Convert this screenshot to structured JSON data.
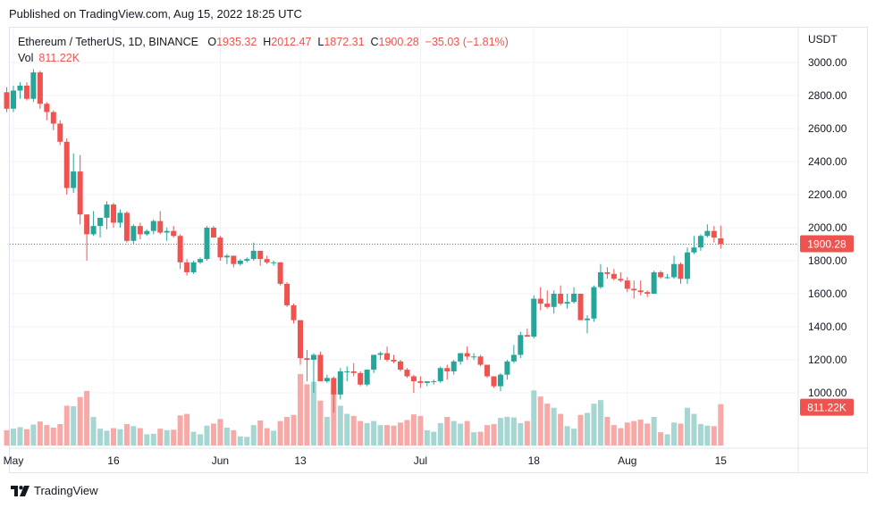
{
  "header": {
    "published": "Published on TradingView.com, Aug 15, 2022 18:25 UTC"
  },
  "legend": {
    "symbol": "Ethereum / TetherUS, 1D, BINANCE",
    "o_label": "O",
    "o_value": "1935.32",
    "h_label": "H",
    "h_value": "2012.47",
    "l_label": "L",
    "l_value": "1872.31",
    "c_label": "C",
    "c_value": "1900.28",
    "change": "−35.03 (−1.81%)",
    "vol_label": "Vol",
    "vol_value": "811.22K"
  },
  "price_axis": {
    "unit": "USDT",
    "ticks": [
      "3000.00",
      "2800.00",
      "2600.00",
      "2400.00",
      "2200.00",
      "2000.00",
      "1800.00",
      "1600.00",
      "1400.00",
      "1200.00",
      "1000.00"
    ],
    "last_price_label": "1900.28",
    "last_volume_label": "811.22K"
  },
  "time_axis": {
    "labels": [
      "May",
      "16",
      "Jun",
      "13",
      "Jul",
      "18",
      "Aug",
      "15"
    ]
  },
  "footer": {
    "brand": "TradingView"
  },
  "colors": {
    "up": "#26a69a",
    "down": "#ef5350",
    "up_volume": "#a5d6d2",
    "down_volume": "#f6a9a6",
    "grid": "#f0f3fa",
    "text": "#131722"
  },
  "chart_data": {
    "type": "candlestick",
    "symbol": "ETH/USDT",
    "interval": "1D",
    "y_unit": "USDT",
    "ylim": [
      850,
      3100
    ],
    "x_range": [
      "2022-05-01",
      "2022-08-15"
    ],
    "date_ticks": [
      "2022-05-01",
      "2022-05-16",
      "2022-06-01",
      "2022-06-13",
      "2022-07-01",
      "2022-07-18",
      "2022-08-01",
      "2022-08-15"
    ],
    "date_tick_labels": [
      "May",
      "16",
      "Jun",
      "13",
      "Jul",
      "18",
      "Aug",
      "15"
    ],
    "last_close": 1900.28,
    "last_volume": "811.22K",
    "volume_unit": "K ETH",
    "candles": [
      {
        "date": "2022-04-30",
        "o": 2820,
        "h": 2850,
        "l": 2700,
        "c": 2720,
        "v": 300
      },
      {
        "date": "2022-05-01",
        "o": 2720,
        "h": 2860,
        "l": 2700,
        "c": 2830,
        "v": 330
      },
      {
        "date": "2022-05-02",
        "o": 2830,
        "h": 2880,
        "l": 2780,
        "c": 2860,
        "v": 360
      },
      {
        "date": "2022-05-03",
        "o": 2860,
        "h": 2880,
        "l": 2770,
        "c": 2780,
        "v": 320
      },
      {
        "date": "2022-05-04",
        "o": 2780,
        "h": 2960,
        "l": 2760,
        "c": 2940,
        "v": 410
      },
      {
        "date": "2022-05-05",
        "o": 2940,
        "h": 2950,
        "l": 2720,
        "c": 2750,
        "v": 470
      },
      {
        "date": "2022-05-06",
        "o": 2750,
        "h": 2760,
        "l": 2650,
        "c": 2700,
        "v": 400
      },
      {
        "date": "2022-05-07",
        "o": 2700,
        "h": 2710,
        "l": 2590,
        "c": 2630,
        "v": 350
      },
      {
        "date": "2022-05-08",
        "o": 2630,
        "h": 2650,
        "l": 2500,
        "c": 2520,
        "v": 420
      },
      {
        "date": "2022-05-09",
        "o": 2520,
        "h": 2540,
        "l": 2200,
        "c": 2240,
        "v": 780
      },
      {
        "date": "2022-05-10",
        "o": 2240,
        "h": 2450,
        "l": 2210,
        "c": 2340,
        "v": 770
      },
      {
        "date": "2022-05-11",
        "o": 2340,
        "h": 2440,
        "l": 2020,
        "c": 2080,
        "v": 950
      },
      {
        "date": "2022-05-12",
        "o": 2080,
        "h": 2080,
        "l": 1800,
        "c": 1960,
        "v": 1070
      },
      {
        "date": "2022-05-13",
        "o": 1960,
        "h": 2100,
        "l": 1950,
        "c": 2010,
        "v": 560
      },
      {
        "date": "2022-05-14",
        "o": 2010,
        "h": 2050,
        "l": 1940,
        "c": 2060,
        "v": 330
      },
      {
        "date": "2022-05-15",
        "o": 2060,
        "h": 2160,
        "l": 1990,
        "c": 2140,
        "v": 290
      },
      {
        "date": "2022-05-16",
        "o": 2140,
        "h": 2150,
        "l": 2000,
        "c": 2030,
        "v": 340
      },
      {
        "date": "2022-05-17",
        "o": 2030,
        "h": 2110,
        "l": 2000,
        "c": 2090,
        "v": 320
      },
      {
        "date": "2022-05-18",
        "o": 2090,
        "h": 2100,
        "l": 1910,
        "c": 1920,
        "v": 420
      },
      {
        "date": "2022-05-19",
        "o": 1920,
        "h": 2020,
        "l": 1900,
        "c": 2010,
        "v": 380
      },
      {
        "date": "2022-05-20",
        "o": 2010,
        "h": 2030,
        "l": 1930,
        "c": 1960,
        "v": 340
      },
      {
        "date": "2022-05-21",
        "o": 1960,
        "h": 1990,
        "l": 1950,
        "c": 1980,
        "v": 220
      },
      {
        "date": "2022-05-22",
        "o": 1980,
        "h": 2050,
        "l": 1960,
        "c": 2040,
        "v": 230
      },
      {
        "date": "2022-05-23",
        "o": 2040,
        "h": 2100,
        "l": 1960,
        "c": 1970,
        "v": 330
      },
      {
        "date": "2022-05-24",
        "o": 1970,
        "h": 2000,
        "l": 1920,
        "c": 1980,
        "v": 300
      },
      {
        "date": "2022-05-25",
        "o": 1980,
        "h": 2010,
        "l": 1940,
        "c": 1950,
        "v": 310
      },
      {
        "date": "2022-05-26",
        "o": 1950,
        "h": 1960,
        "l": 1750,
        "c": 1790,
        "v": 590
      },
      {
        "date": "2022-05-27",
        "o": 1790,
        "h": 1810,
        "l": 1710,
        "c": 1730,
        "v": 620
      },
      {
        "date": "2022-05-28",
        "o": 1730,
        "h": 1800,
        "l": 1720,
        "c": 1790,
        "v": 270
      },
      {
        "date": "2022-05-29",
        "o": 1790,
        "h": 1820,
        "l": 1780,
        "c": 1810,
        "v": 220
      },
      {
        "date": "2022-05-30",
        "o": 1810,
        "h": 2010,
        "l": 1800,
        "c": 2000,
        "v": 390
      },
      {
        "date": "2022-05-31",
        "o": 2000,
        "h": 2010,
        "l": 1940,
        "c": 1940,
        "v": 430
      },
      {
        "date": "2022-06-01",
        "o": 1940,
        "h": 1950,
        "l": 1800,
        "c": 1820,
        "v": 520
      },
      {
        "date": "2022-06-02",
        "o": 1820,
        "h": 1840,
        "l": 1780,
        "c": 1830,
        "v": 350
      },
      {
        "date": "2022-06-03",
        "o": 1830,
        "h": 1830,
        "l": 1760,
        "c": 1780,
        "v": 300
      },
      {
        "date": "2022-06-04",
        "o": 1780,
        "h": 1810,
        "l": 1770,
        "c": 1800,
        "v": 180
      },
      {
        "date": "2022-06-05",
        "o": 1800,
        "h": 1820,
        "l": 1790,
        "c": 1810,
        "v": 170
      },
      {
        "date": "2022-06-06",
        "o": 1810,
        "h": 1910,
        "l": 1800,
        "c": 1860,
        "v": 400
      },
      {
        "date": "2022-06-07",
        "o": 1860,
        "h": 1860,
        "l": 1770,
        "c": 1810,
        "v": 490
      },
      {
        "date": "2022-06-08",
        "o": 1810,
        "h": 1830,
        "l": 1780,
        "c": 1790,
        "v": 340
      },
      {
        "date": "2022-06-09",
        "o": 1790,
        "h": 1800,
        "l": 1770,
        "c": 1790,
        "v": 290
      },
      {
        "date": "2022-06-10",
        "o": 1790,
        "h": 1790,
        "l": 1650,
        "c": 1660,
        "v": 480
      },
      {
        "date": "2022-06-11",
        "o": 1660,
        "h": 1670,
        "l": 1520,
        "c": 1530,
        "v": 560
      },
      {
        "date": "2022-06-12",
        "o": 1530,
        "h": 1540,
        "l": 1420,
        "c": 1440,
        "v": 600
      },
      {
        "date": "2022-06-13",
        "o": 1440,
        "h": 1440,
        "l": 1170,
        "c": 1210,
        "v": 1400
      },
      {
        "date": "2022-06-14",
        "o": 1210,
        "h": 1260,
        "l": 1070,
        "c": 1200,
        "v": 1200
      },
      {
        "date": "2022-06-15",
        "o": 1200,
        "h": 1240,
        "l": 1000,
        "c": 1230,
        "v": 1250
      },
      {
        "date": "2022-06-16",
        "o": 1230,
        "h": 1250,
        "l": 1070,
        "c": 1070,
        "v": 880
      },
      {
        "date": "2022-06-17",
        "o": 1070,
        "h": 1110,
        "l": 1060,
        "c": 1090,
        "v": 560
      },
      {
        "date": "2022-06-18",
        "o": 1090,
        "h": 1100,
        "l": 880,
        "c": 990,
        "v": 1100
      },
      {
        "date": "2022-06-19",
        "o": 990,
        "h": 1150,
        "l": 960,
        "c": 1130,
        "v": 780
      },
      {
        "date": "2022-06-20",
        "o": 1130,
        "h": 1160,
        "l": 1070,
        "c": 1130,
        "v": 620
      },
      {
        "date": "2022-06-21",
        "o": 1130,
        "h": 1180,
        "l": 1100,
        "c": 1120,
        "v": 580
      },
      {
        "date": "2022-06-22",
        "o": 1120,
        "h": 1130,
        "l": 1040,
        "c": 1050,
        "v": 480
      },
      {
        "date": "2022-06-23",
        "o": 1050,
        "h": 1140,
        "l": 1040,
        "c": 1140,
        "v": 440
      },
      {
        "date": "2022-06-24",
        "o": 1140,
        "h": 1230,
        "l": 1120,
        "c": 1230,
        "v": 480
      },
      {
        "date": "2022-06-25",
        "o": 1230,
        "h": 1250,
        "l": 1200,
        "c": 1240,
        "v": 400
      },
      {
        "date": "2022-06-26",
        "o": 1240,
        "h": 1280,
        "l": 1190,
        "c": 1200,
        "v": 400
      },
      {
        "date": "2022-06-27",
        "o": 1200,
        "h": 1230,
        "l": 1180,
        "c": 1190,
        "v": 390
      },
      {
        "date": "2022-06-28",
        "o": 1190,
        "h": 1200,
        "l": 1130,
        "c": 1140,
        "v": 450
      },
      {
        "date": "2022-06-29",
        "o": 1140,
        "h": 1150,
        "l": 1090,
        "c": 1100,
        "v": 500
      },
      {
        "date": "2022-06-30",
        "o": 1100,
        "h": 1110,
        "l": 1000,
        "c": 1070,
        "v": 610
      },
      {
        "date": "2022-07-01",
        "o": 1070,
        "h": 1100,
        "l": 1030,
        "c": 1060,
        "v": 580
      },
      {
        "date": "2022-07-02",
        "o": 1060,
        "h": 1070,
        "l": 1040,
        "c": 1070,
        "v": 300
      },
      {
        "date": "2022-07-03",
        "o": 1070,
        "h": 1080,
        "l": 1050,
        "c": 1070,
        "v": 270
      },
      {
        "date": "2022-07-04",
        "o": 1070,
        "h": 1160,
        "l": 1060,
        "c": 1150,
        "v": 440
      },
      {
        "date": "2022-07-05",
        "o": 1150,
        "h": 1170,
        "l": 1080,
        "c": 1130,
        "v": 560
      },
      {
        "date": "2022-07-06",
        "o": 1130,
        "h": 1200,
        "l": 1110,
        "c": 1190,
        "v": 480
      },
      {
        "date": "2022-07-07",
        "o": 1190,
        "h": 1240,
        "l": 1170,
        "c": 1240,
        "v": 430
      },
      {
        "date": "2022-07-08",
        "o": 1240,
        "h": 1280,
        "l": 1200,
        "c": 1220,
        "v": 480
      },
      {
        "date": "2022-07-09",
        "o": 1220,
        "h": 1240,
        "l": 1200,
        "c": 1220,
        "v": 260
      },
      {
        "date": "2022-07-10",
        "o": 1220,
        "h": 1230,
        "l": 1160,
        "c": 1170,
        "v": 270
      },
      {
        "date": "2022-07-11",
        "o": 1170,
        "h": 1170,
        "l": 1090,
        "c": 1100,
        "v": 400
      },
      {
        "date": "2022-07-12",
        "o": 1100,
        "h": 1100,
        "l": 1030,
        "c": 1040,
        "v": 420
      },
      {
        "date": "2022-07-13",
        "o": 1040,
        "h": 1120,
        "l": 1010,
        "c": 1110,
        "v": 540
      },
      {
        "date": "2022-07-14",
        "o": 1110,
        "h": 1200,
        "l": 1080,
        "c": 1190,
        "v": 560
      },
      {
        "date": "2022-07-15",
        "o": 1190,
        "h": 1290,
        "l": 1180,
        "c": 1230,
        "v": 550
      },
      {
        "date": "2022-07-16",
        "o": 1230,
        "h": 1370,
        "l": 1210,
        "c": 1350,
        "v": 440
      },
      {
        "date": "2022-07-17",
        "o": 1350,
        "h": 1390,
        "l": 1340,
        "c": 1340,
        "v": 480
      },
      {
        "date": "2022-07-18",
        "o": 1340,
        "h": 1590,
        "l": 1330,
        "c": 1570,
        "v": 1080
      },
      {
        "date": "2022-07-19",
        "o": 1570,
        "h": 1640,
        "l": 1500,
        "c": 1540,
        "v": 960
      },
      {
        "date": "2022-07-20",
        "o": 1540,
        "h": 1620,
        "l": 1510,
        "c": 1520,
        "v": 820
      },
      {
        "date": "2022-07-21",
        "o": 1520,
        "h": 1620,
        "l": 1480,
        "c": 1600,
        "v": 740
      },
      {
        "date": "2022-07-22",
        "o": 1600,
        "h": 1650,
        "l": 1530,
        "c": 1540,
        "v": 620
      },
      {
        "date": "2022-07-23",
        "o": 1540,
        "h": 1600,
        "l": 1510,
        "c": 1550,
        "v": 380
      },
      {
        "date": "2022-07-24",
        "o": 1550,
        "h": 1640,
        "l": 1540,
        "c": 1600,
        "v": 330
      },
      {
        "date": "2022-07-25",
        "o": 1600,
        "h": 1600,
        "l": 1440,
        "c": 1440,
        "v": 600
      },
      {
        "date": "2022-07-26",
        "o": 1440,
        "h": 1470,
        "l": 1360,
        "c": 1450,
        "v": 640
      },
      {
        "date": "2022-07-27",
        "o": 1450,
        "h": 1650,
        "l": 1430,
        "c": 1640,
        "v": 820
      },
      {
        "date": "2022-07-28",
        "o": 1640,
        "h": 1780,
        "l": 1630,
        "c": 1730,
        "v": 890
      },
      {
        "date": "2022-07-29",
        "o": 1730,
        "h": 1760,
        "l": 1690,
        "c": 1720,
        "v": 560
      },
      {
        "date": "2022-07-30",
        "o": 1720,
        "h": 1750,
        "l": 1680,
        "c": 1690,
        "v": 400
      },
      {
        "date": "2022-07-31",
        "o": 1690,
        "h": 1730,
        "l": 1670,
        "c": 1680,
        "v": 340
      },
      {
        "date": "2022-08-01",
        "o": 1680,
        "h": 1700,
        "l": 1610,
        "c": 1630,
        "v": 450
      },
      {
        "date": "2022-08-02",
        "o": 1630,
        "h": 1680,
        "l": 1570,
        "c": 1620,
        "v": 480
      },
      {
        "date": "2022-08-03",
        "o": 1620,
        "h": 1680,
        "l": 1590,
        "c": 1610,
        "v": 510
      },
      {
        "date": "2022-08-04",
        "o": 1610,
        "h": 1620,
        "l": 1580,
        "c": 1600,
        "v": 430
      },
      {
        "date": "2022-08-05",
        "o": 1600,
        "h": 1740,
        "l": 1600,
        "c": 1730,
        "v": 560
      },
      {
        "date": "2022-08-06",
        "o": 1730,
        "h": 1740,
        "l": 1690,
        "c": 1700,
        "v": 260
      },
      {
        "date": "2022-08-07",
        "o": 1700,
        "h": 1720,
        "l": 1690,
        "c": 1700,
        "v": 220
      },
      {
        "date": "2022-08-08",
        "o": 1700,
        "h": 1830,
        "l": 1690,
        "c": 1780,
        "v": 450
      },
      {
        "date": "2022-08-09",
        "o": 1780,
        "h": 1790,
        "l": 1660,
        "c": 1690,
        "v": 430
      },
      {
        "date": "2022-08-10",
        "o": 1690,
        "h": 1880,
        "l": 1660,
        "c": 1850,
        "v": 740
      },
      {
        "date": "2022-08-11",
        "o": 1850,
        "h": 1950,
        "l": 1840,
        "c": 1880,
        "v": 620
      },
      {
        "date": "2022-08-12",
        "o": 1880,
        "h": 1960,
        "l": 1860,
        "c": 1950,
        "v": 420
      },
      {
        "date": "2022-08-13",
        "o": 1950,
        "h": 2020,
        "l": 1940,
        "c": 1980,
        "v": 390
      },
      {
        "date": "2022-08-14",
        "o": 1980,
        "h": 2010,
        "l": 1910,
        "c": 1940,
        "v": 380
      },
      {
        "date": "2022-08-15",
        "o": 1935.32,
        "h": 2012.47,
        "l": 1872.31,
        "c": 1900.28,
        "v": 811.22
      }
    ]
  }
}
